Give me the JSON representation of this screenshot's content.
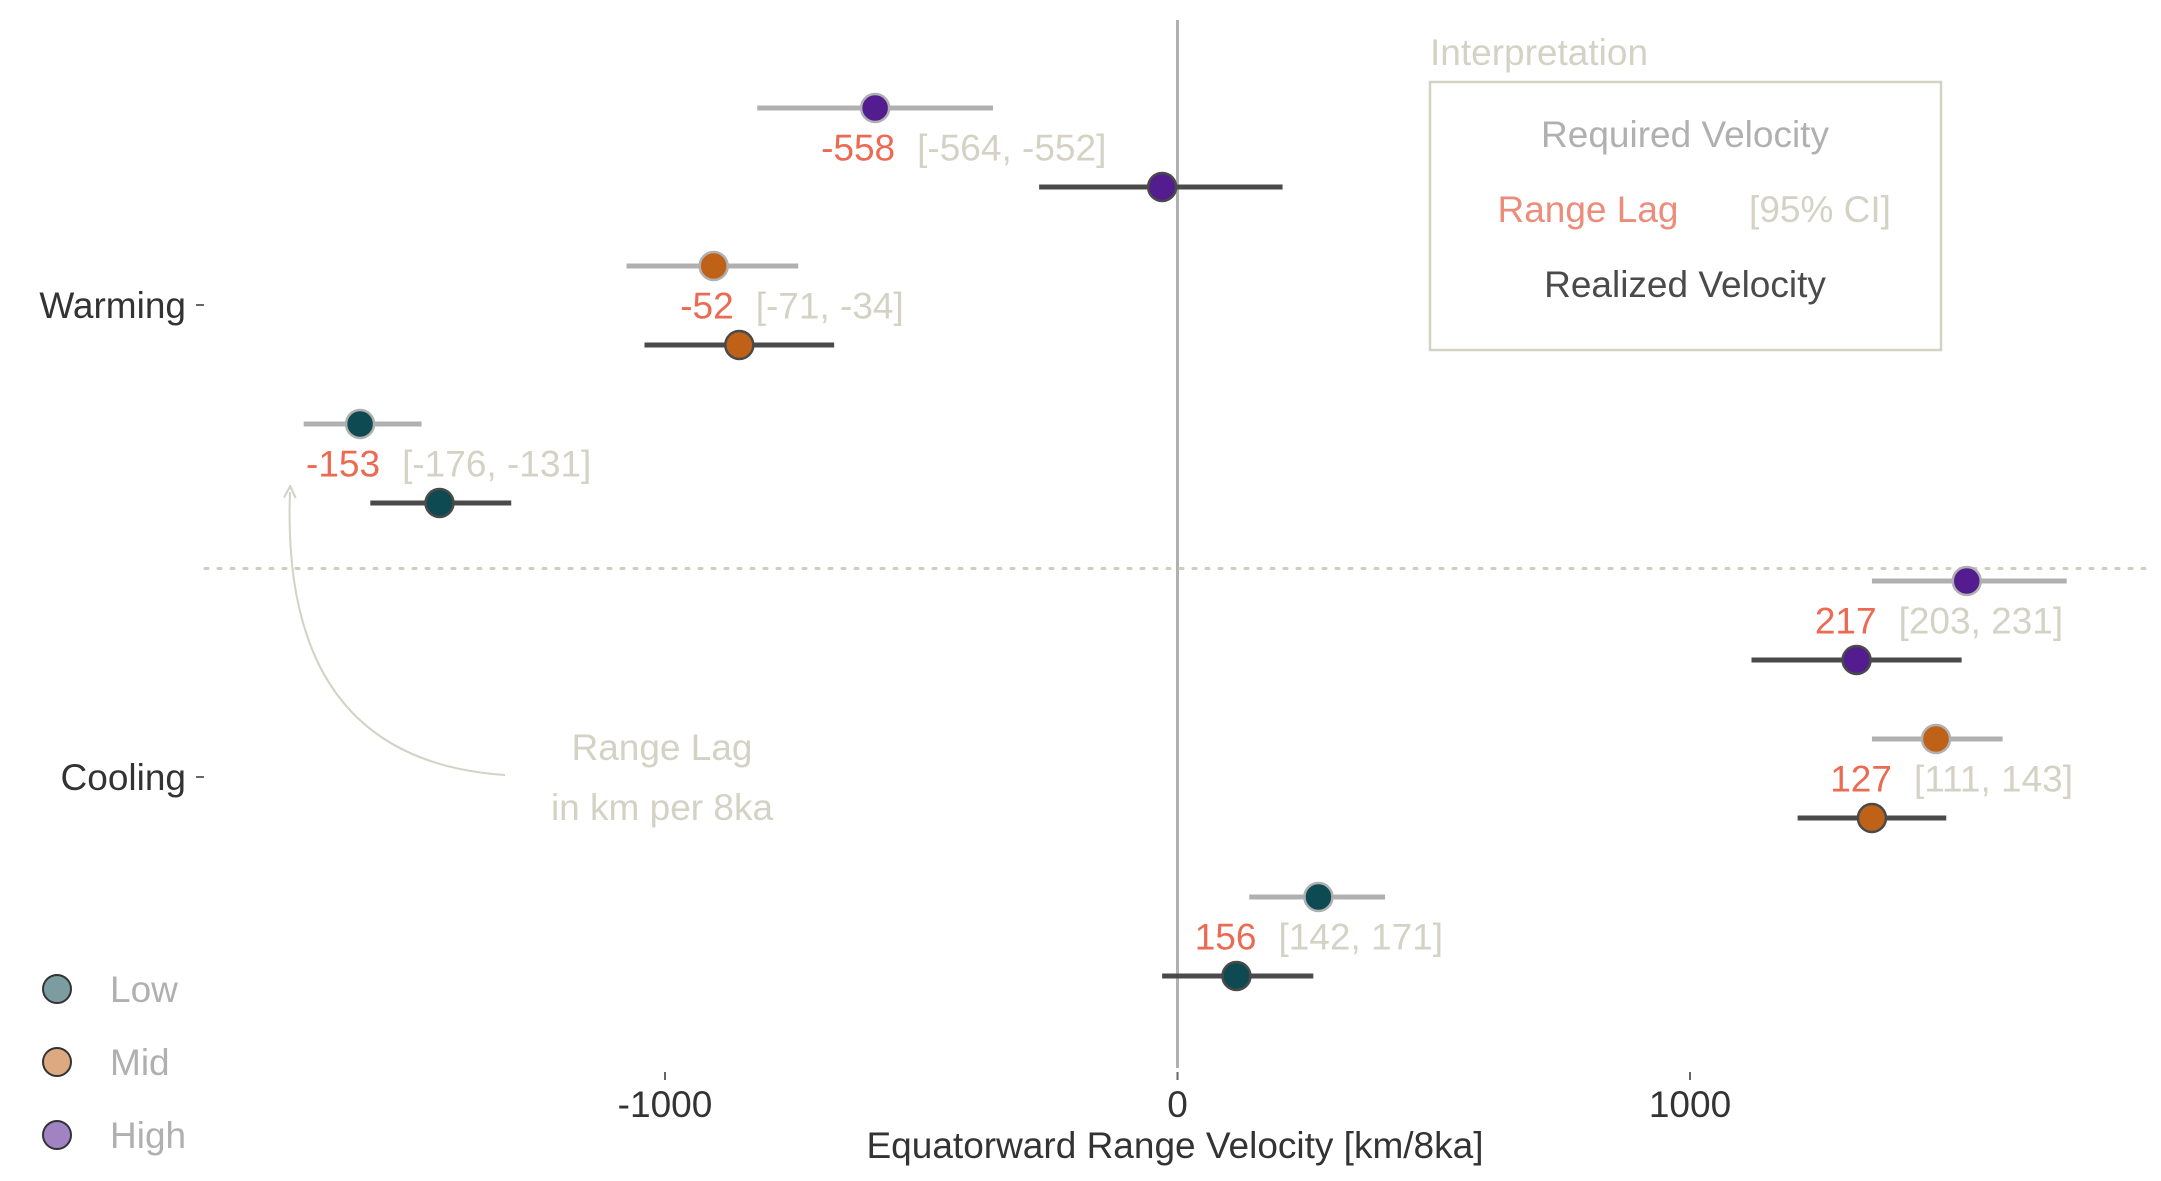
{
  "chart_data": {
    "type": "scatter",
    "title": "",
    "xlabel": "Equatorward Range Velocity [km/8ka]",
    "ylabel": "",
    "xlim": [
      -1900,
      1900
    ],
    "x_ticks": [
      -1000,
      0,
      1000
    ],
    "x_tick_labels": [
      "-1000",
      "0",
      "1000"
    ],
    "categories": [
      "Warming",
      "Cooling"
    ],
    "group_separator": "dotted",
    "zero_line": true,
    "colors": {
      "Low": "#0e4a52",
      "Mid": "#bf6218",
      "High": "#531c8f",
      "required": "#b0b0b0",
      "realized": "#4a4a4a",
      "lag_text": "#ec6a52",
      "ci_text": "#d4d2c4"
    },
    "series": [
      {
        "name": "High",
        "category": "Warming",
        "required": -590,
        "required_ci": [
          -820,
          -360
        ],
        "realized": -30,
        "realized_ci": [
          -270,
          205
        ],
        "lag": "-558",
        "lag_ci": "[-564, -552]"
      },
      {
        "name": "Mid",
        "category": "Warming",
        "required": -905,
        "required_ci": [
          -1075,
          -740
        ],
        "realized": -855,
        "realized_ci": [
          -1040,
          -670
        ],
        "lag": "-52",
        "lag_ci": "[-71, -34]"
      },
      {
        "name": "Low",
        "category": "Warming",
        "required": -1595,
        "required_ci": [
          -1705,
          -1475
        ],
        "realized": -1440,
        "realized_ci": [
          -1575,
          -1300
        ],
        "lag": "-153",
        "lag_ci": "[-176, -131]"
      },
      {
        "name": "High",
        "category": "Cooling",
        "required": 1540,
        "required_ci": [
          1355,
          1735
        ],
        "realized": 1325,
        "realized_ci": [
          1120,
          1530
        ],
        "lag": "217",
        "lag_ci": "[203, 231]"
      },
      {
        "name": "Mid",
        "category": "Cooling",
        "required": 1480,
        "required_ci": [
          1355,
          1610
        ],
        "realized": 1355,
        "realized_ci": [
          1210,
          1500
        ],
        "lag": "127",
        "lag_ci": "[111, 143]"
      },
      {
        "name": "Low",
        "category": "Cooling",
        "required": 275,
        "required_ci": [
          140,
          405
        ],
        "realized": 115,
        "realized_ci": [
          -30,
          265
        ],
        "lag": "156",
        "lag_ci": "[142, 171]"
      }
    ],
    "interpretation_box": {
      "title": "Interpretation",
      "required": "Required Velocity",
      "lag": "Range Lag",
      "ci": "[95% CI]",
      "realized": "Realized Velocity"
    },
    "annotation": {
      "line1": "Range Lag",
      "line2": "in km per 8ka"
    },
    "legend": {
      "placement": "bottom-left",
      "items": [
        "Low",
        "Mid",
        "High"
      ]
    }
  }
}
